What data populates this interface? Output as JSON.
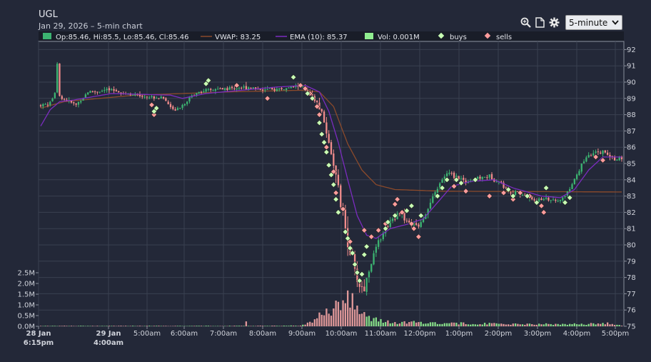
{
  "header": {
    "symbol": "UGL",
    "subtitle": "Jan 29, 2026 – 5-min chart"
  },
  "toolbar": {
    "timeframe_selected": "5-minute",
    "icons": [
      "zoom-icon",
      "document-icon",
      "gear-icon"
    ]
  },
  "colors": {
    "background": "#232838",
    "grid": "#3a4050",
    "up": "#3cb371",
    "down": "#f08b8b",
    "vwap": "#8b4a2b",
    "ema": "#7b2cbf",
    "buys": "#c8ffb4",
    "sells": "#ff9c9c"
  },
  "legend": {
    "ohlc": "Op:85.46, Hi:85.5, Lo:85.46, Cl:85.46",
    "vwap": "VWAP: 83.25",
    "ema": "EMA (10): 85.37",
    "vol": "Vol: 0.001M",
    "buys": "buys",
    "sells": "sells"
  },
  "chart_data": {
    "type": "candlestick",
    "y_axis": {
      "side": "right",
      "min": 75,
      "max": 92.5,
      "ticks": [
        "75",
        "76",
        "77",
        "78",
        "79",
        "80",
        "81",
        "82",
        "83",
        "84",
        "85",
        "86",
        "87",
        "88",
        "89",
        "90",
        "91",
        "92"
      ]
    },
    "volume_axis": {
      "side": "left",
      "ticks": [
        "0.0M",
        "0.5M",
        "1.0M",
        "1.5M",
        "2.0M",
        "2.5M"
      ]
    },
    "x_ticks": [
      {
        "label": "28 Jan",
        "label2": "6:15pm",
        "bold": true
      },
      {
        "label": "29 Jan",
        "label2": "4:00am",
        "bold": true
      },
      {
        "label": "5:00am"
      },
      {
        "label": "6:00am"
      },
      {
        "label": "7:00am"
      },
      {
        "label": "8:00am"
      },
      {
        "label": "9:00am"
      },
      {
        "label": "10:00am"
      },
      {
        "label": "11:00am"
      },
      {
        "label": "12:00pm"
      },
      {
        "label": "1:00pm"
      },
      {
        "label": "2:00pm"
      },
      {
        "label": "3:00pm"
      },
      {
        "label": "4:00pm"
      },
      {
        "label": "5:00pm"
      }
    ],
    "price_keypoints": [
      [
        0,
        88.6
      ],
      [
        4,
        88.7
      ],
      [
        6,
        89.4
      ],
      [
        7,
        91.2
      ],
      [
        8,
        89.1
      ],
      [
        12,
        88.8
      ],
      [
        15,
        88.6
      ],
      [
        20,
        89.4
      ],
      [
        30,
        89.5
      ],
      [
        40,
        89.2
      ],
      [
        52,
        89.0
      ],
      [
        56,
        88.3
      ],
      [
        60,
        88.6
      ],
      [
        66,
        89.4
      ],
      [
        78,
        89.6
      ],
      [
        88,
        89.7
      ],
      [
        96,
        89.5
      ],
      [
        104,
        89.6
      ],
      [
        110,
        89.8
      ],
      [
        114,
        89.2
      ],
      [
        118,
        88.5
      ],
      [
        121,
        87.0
      ],
      [
        124,
        85.0
      ],
      [
        127,
        82.5
      ],
      [
        130,
        80.3
      ],
      [
        133,
        78.3
      ],
      [
        135,
        77.5
      ],
      [
        137,
        77.3
      ],
      [
        139,
        78.5
      ],
      [
        142,
        79.8
      ],
      [
        145,
        80.8
      ],
      [
        148,
        81.5
      ],
      [
        152,
        82.0
      ],
      [
        156,
        81.3
      ],
      [
        160,
        81.2
      ],
      [
        164,
        82.2
      ],
      [
        168,
        83.5
      ],
      [
        172,
        84.4
      ],
      [
        176,
        84.2
      ],
      [
        180,
        83.9
      ],
      [
        185,
        84.1
      ],
      [
        190,
        84.2
      ],
      [
        194,
        83.9
      ],
      [
        198,
        83.3
      ],
      [
        204,
        83.1
      ],
      [
        210,
        82.7
      ],
      [
        214,
        82.9
      ],
      [
        218,
        82.6
      ],
      [
        222,
        83.0
      ],
      [
        226,
        84.0
      ],
      [
        230,
        85.2
      ],
      [
        234,
        85.6
      ],
      [
        238,
        85.7
      ],
      [
        242,
        85.3
      ],
      [
        246,
        85.3
      ]
    ],
    "ema_keypoints": [
      [
        0,
        87.3
      ],
      [
        4,
        88.3
      ],
      [
        8,
        88.8
      ],
      [
        14,
        88.9
      ],
      [
        30,
        89.3
      ],
      [
        55,
        89.2
      ],
      [
        60,
        89.0
      ],
      [
        70,
        89.3
      ],
      [
        100,
        89.7
      ],
      [
        112,
        89.8
      ],
      [
        118,
        89.4
      ],
      [
        122,
        88.2
      ],
      [
        126,
        86.3
      ],
      [
        130,
        84.0
      ],
      [
        134,
        81.8
      ],
      [
        138,
        80.6
      ],
      [
        142,
        80.4
      ],
      [
        148,
        81.0
      ],
      [
        156,
        81.3
      ],
      [
        162,
        81.6
      ],
      [
        168,
        82.6
      ],
      [
        174,
        83.6
      ],
      [
        182,
        83.9
      ],
      [
        192,
        84.0
      ],
      [
        200,
        83.5
      ],
      [
        212,
        83.0
      ],
      [
        220,
        82.9
      ],
      [
        226,
        83.4
      ],
      [
        232,
        84.6
      ],
      [
        238,
        85.4
      ],
      [
        246,
        85.4
      ]
    ],
    "vwap_keypoints": [
      [
        0,
        88.4
      ],
      [
        10,
        88.8
      ],
      [
        40,
        89.2
      ],
      [
        80,
        89.4
      ],
      [
        110,
        89.5
      ],
      [
        118,
        89.4
      ],
      [
        124,
        88.5
      ],
      [
        130,
        86.2
      ],
      [
        136,
        84.6
      ],
      [
        142,
        83.7
      ],
      [
        150,
        83.4
      ],
      [
        170,
        83.3
      ],
      [
        246,
        83.25
      ]
    ],
    "volume_keypoints": [
      [
        0,
        0.02
      ],
      [
        30,
        0.02
      ],
      [
        60,
        0.02
      ],
      [
        86,
        0.02
      ],
      [
        87,
        0.2
      ],
      [
        88,
        0.02
      ],
      [
        110,
        0.03
      ],
      [
        113,
        0.15
      ],
      [
        116,
        0.3
      ],
      [
        119,
        0.55
      ],
      [
        122,
        0.75
      ],
      [
        125,
        0.9
      ],
      [
        128,
        1.2
      ],
      [
        130,
        1.5
      ],
      [
        132,
        1.3
      ],
      [
        134,
        1.0
      ],
      [
        136,
        0.6
      ],
      [
        139,
        0.4
      ],
      [
        142,
        0.3
      ],
      [
        150,
        0.15
      ],
      [
        160,
        0.2
      ],
      [
        170,
        0.15
      ],
      [
        200,
        0.1
      ],
      [
        230,
        0.1
      ],
      [
        240,
        0.15
      ],
      [
        246,
        0.03
      ]
    ],
    "buys": [
      [
        48,
        88.2
      ],
      [
        49,
        88.4
      ],
      [
        70,
        89.9
      ],
      [
        71,
        90.1
      ],
      [
        107,
        90.3
      ],
      [
        113,
        89.3
      ],
      [
        115,
        89.0
      ],
      [
        118,
        87.5
      ],
      [
        119,
        86.8
      ],
      [
        120,
        86.3
      ],
      [
        121,
        85.7
      ],
      [
        122,
        84.9
      ],
      [
        123,
        84.3
      ],
      [
        124,
        83.7
      ],
      [
        125,
        82.8
      ],
      [
        126,
        82.0
      ],
      [
        129,
        80.8
      ],
      [
        130,
        80.4
      ],
      [
        131,
        79.8
      ],
      [
        132,
        79.5
      ],
      [
        133,
        78.8
      ],
      [
        134,
        78.3
      ],
      [
        135,
        77.8
      ],
      [
        136,
        78.2
      ],
      [
        137,
        79.4
      ],
      [
        138,
        79.9
      ],
      [
        146,
        81.0
      ],
      [
        147,
        81.4
      ],
      [
        150,
        81.8
      ],
      [
        155,
        82.1
      ],
      [
        157,
        82.4
      ],
      [
        161,
        81.8
      ],
      [
        168,
        83.0
      ],
      [
        170,
        83.5
      ],
      [
        172,
        84.0
      ],
      [
        176,
        84.0
      ],
      [
        178,
        83.8
      ],
      [
        184,
        84.0
      ],
      [
        198,
        83.4
      ],
      [
        200,
        83.0
      ],
      [
        206,
        83.0
      ],
      [
        210,
        82.6
      ],
      [
        214,
        83.5
      ],
      [
        222,
        82.6
      ],
      [
        224,
        82.9
      ]
    ],
    "sells": [
      [
        47,
        88.6
      ],
      [
        48,
        88.0
      ],
      [
        83,
        89.8
      ],
      [
        96,
        89.0
      ],
      [
        110,
        89.8
      ],
      [
        112,
        89.6
      ],
      [
        114,
        89.3
      ],
      [
        117,
        88.5
      ],
      [
        118,
        88.0
      ],
      [
        121,
        86.0
      ],
      [
        124,
        84.5
      ],
      [
        125,
        83.2
      ],
      [
        128,
        82.2
      ],
      [
        131,
        80.2
      ],
      [
        137,
        80.9
      ],
      [
        140,
        80.5
      ],
      [
        143,
        80.9
      ],
      [
        146,
        81.3
      ],
      [
        150,
        82.5
      ],
      [
        151,
        82.8
      ],
      [
        153,
        82.0
      ],
      [
        157,
        81.3
      ],
      [
        158,
        81.0
      ],
      [
        160,
        80.5
      ],
      [
        175,
        83.6
      ],
      [
        180,
        83.3
      ],
      [
        190,
        83.0
      ],
      [
        196,
        83.2
      ],
      [
        200,
        82.8
      ],
      [
        203,
        83.2
      ],
      [
        207,
        83.0
      ],
      [
        212,
        82.4
      ],
      [
        213,
        82.0
      ],
      [
        235,
        85.4
      ],
      [
        238,
        85.2
      ]
    ]
  }
}
